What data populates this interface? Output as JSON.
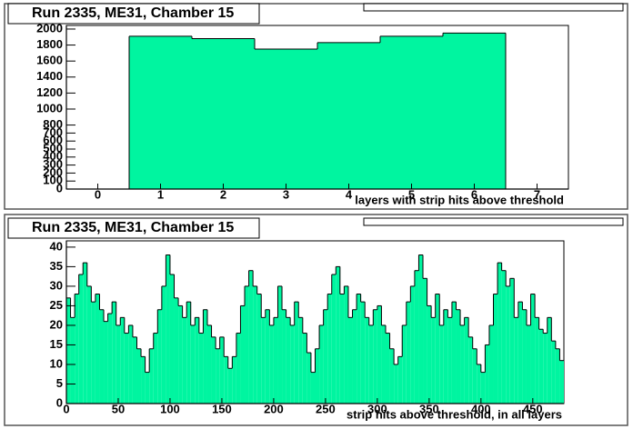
{
  "chart_data": [
    {
      "type": "histogram",
      "title": "Run 2335, ME31, Chamber 15",
      "xlabel": "layers with strip hits above threshold",
      "bins": [
        -0.5,
        0.5,
        1.5,
        2.5,
        3.5,
        4.5,
        5.5,
        6.5,
        7.5
      ],
      "values": [
        0,
        1910,
        1880,
        1750,
        1830,
        1910,
        1950,
        0
      ],
      "color": "#00f5a0",
      "xlim": [
        -0.5,
        7.5
      ],
      "xticks": [
        0,
        1,
        2,
        3,
        4,
        5,
        6,
        7
      ],
      "ylim": [
        0,
        2045
      ],
      "yticks": [
        0,
        100,
        200,
        300,
        400,
        500,
        600,
        700,
        800,
        1000,
        1200,
        1400,
        1600,
        1800,
        2000
      ]
    },
    {
      "type": "histogram",
      "title": "Run 2335, ME31, Chamber 15",
      "xlabel": "strip hits above threshold, in all layers",
      "bins": [
        0,
        4,
        8,
        12,
        16,
        20,
        24,
        28,
        32,
        36,
        40,
        44,
        48,
        52,
        56,
        60,
        64,
        68,
        72,
        76,
        80,
        84,
        88,
        92,
        96,
        100,
        104,
        108,
        112,
        116,
        120,
        124,
        128,
        132,
        136,
        140,
        144,
        148,
        152,
        156,
        160,
        164,
        168,
        172,
        176,
        180,
        184,
        188,
        192,
        196,
        200,
        204,
        208,
        212,
        216,
        220,
        224,
        228,
        232,
        236,
        240,
        244,
        248,
        252,
        256,
        260,
        264,
        268,
        272,
        276,
        280,
        284,
        288,
        292,
        296,
        300,
        304,
        308,
        312,
        316,
        320,
        324,
        328,
        332,
        336,
        340,
        344,
        348,
        352,
        356,
        360,
        364,
        368,
        372,
        376,
        380,
        384,
        388,
        392,
        396,
        400,
        404,
        408,
        412,
        416,
        420,
        424,
        428,
        432,
        436,
        440,
        444,
        448,
        452,
        456,
        460,
        464,
        468,
        472,
        476,
        480
      ],
      "values": [
        27,
        22,
        28,
        33,
        36,
        30,
        26,
        28,
        24,
        21,
        23,
        26,
        20,
        22,
        18,
        20,
        17,
        14,
        12,
        8,
        14,
        18,
        24,
        30,
        38,
        33,
        27,
        25,
        22,
        26,
        20,
        22,
        18,
        24,
        20,
        17,
        14,
        17,
        12,
        9,
        12,
        18,
        25,
        30,
        34,
        30,
        28,
        22,
        24,
        20,
        22,
        30,
        24,
        22,
        20,
        26,
        22,
        18,
        13,
        8,
        14,
        20,
        24,
        28,
        33,
        35,
        28,
        30,
        22,
        24,
        28,
        26,
        22,
        20,
        24,
        25,
        20,
        18,
        14,
        10,
        12,
        20,
        26,
        30,
        34,
        38,
        32,
        25,
        22,
        28,
        20,
        24,
        22,
        26,
        24,
        20,
        22,
        17,
        14,
        10,
        8,
        15,
        20,
        28,
        36,
        34,
        30,
        32,
        22,
        26,
        24,
        20,
        28,
        22,
        19,
        18,
        22,
        16,
        14,
        11
      ],
      "color": "#00f5a0",
      "xlim": [
        0,
        480
      ],
      "xticks": [
        0,
        50,
        100,
        150,
        200,
        250,
        300,
        350,
        400,
        450
      ],
      "ylim": [
        0,
        41.6
      ],
      "yticks": [
        0,
        5,
        10,
        15,
        20,
        25,
        30,
        35,
        40
      ]
    }
  ]
}
